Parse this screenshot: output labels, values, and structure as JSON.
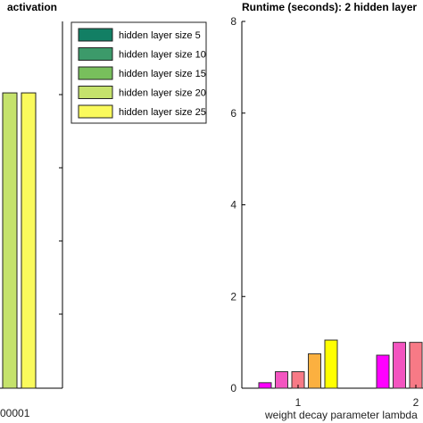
{
  "chart_data": [
    {
      "type": "bar",
      "title": "activation",
      "xlabel": "",
      "ylabel": "",
      "x_tick_labels": [
        "00001"
      ],
      "categories": [
        "00001"
      ],
      "series": [
        {
          "name": "hidden layer size 20",
          "values": [
            8.1
          ]
        },
        {
          "name": "hidden layer size 25",
          "values": [
            8.1
          ]
        }
      ],
      "legend": {
        "placement": "top-right",
        "entries": [
          {
            "label": "hidden layer size 5",
            "color": "#127f64"
          },
          {
            "label": "hidden layer size 10",
            "color": "#3c9a6a"
          },
          {
            "label": "hidden layer size 15",
            "color": "#78bf5c"
          },
          {
            "label": "hidden layer size 20",
            "color": "#c5e26c"
          },
          {
            "label": "hidden layer size 25",
            "color": "#fafa5c"
          }
        ]
      }
    },
    {
      "type": "bar",
      "title": "Runtime (seconds): 2 hidden layer",
      "xlabel": "weight decay parameter lambda",
      "ylabel": "",
      "ylim": [
        0,
        8
      ],
      "y_ticks": [
        0,
        2,
        4,
        6,
        8
      ],
      "categories": [
        "1",
        "2"
      ],
      "series": [
        {
          "name": "hidden layer size 5",
          "color": "#ff00ff",
          "values": [
            0.12,
            0.72
          ]
        },
        {
          "name": "hidden layer size 10",
          "color": "#f355c0",
          "values": [
            0.36,
            1.0
          ]
        },
        {
          "name": "hidden layer size 15",
          "color": "#f77a86",
          "values": [
            0.36,
            1.0
          ]
        },
        {
          "name": "hidden layer size 20",
          "color": "#fbb040",
          "values": [
            0.75,
            null
          ]
        },
        {
          "name": "hidden layer size 25",
          "color": "#ffff00",
          "values": [
            1.05,
            null
          ]
        }
      ]
    }
  ]
}
